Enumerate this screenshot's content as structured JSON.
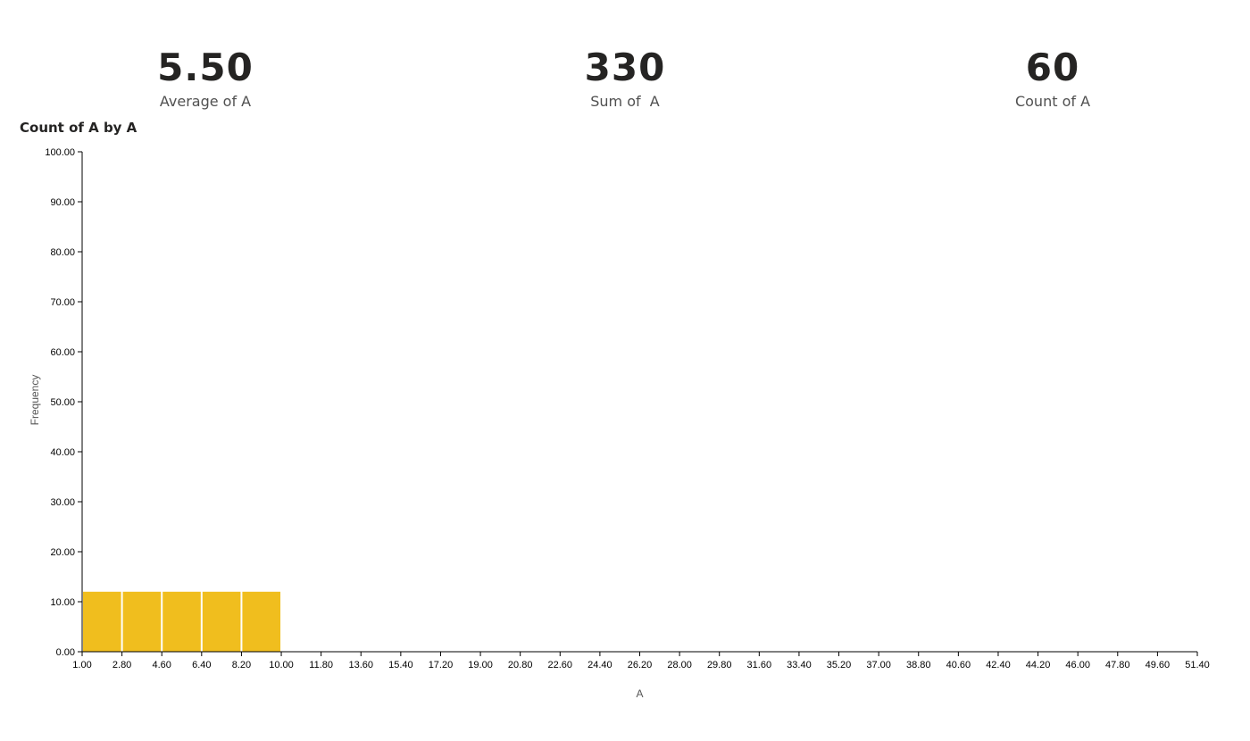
{
  "cards": [
    {
      "value": "5.50",
      "label": "Average of A"
    },
    {
      "value": "330",
      "label": "Sum of  A"
    },
    {
      "value": "60",
      "label": "Count of A"
    }
  ],
  "chart_data": {
    "type": "bar",
    "title": "Count of A by A",
    "xlabel": "A",
    "ylabel": "Frequency",
    "ylim": [
      0,
      100
    ],
    "yticks": [
      "0.00",
      "10.00",
      "20.00",
      "30.00",
      "40.00",
      "50.00",
      "60.00",
      "70.00",
      "80.00",
      "90.00",
      "100.00"
    ],
    "xticks": [
      "1.00",
      "2.80",
      "4.60",
      "6.40",
      "8.20",
      "10.00",
      "11.80",
      "13.60",
      "15.40",
      "17.20",
      "19.00",
      "20.80",
      "22.60",
      "24.40",
      "26.20",
      "28.00",
      "29.80",
      "31.60",
      "33.40",
      "35.20",
      "37.00",
      "38.80",
      "40.60",
      "42.40",
      "44.20",
      "46.00",
      "47.80",
      "49.60",
      "51.40"
    ],
    "xlim": [
      1.0,
      51.4
    ],
    "bins": [
      {
        "start": 1.0,
        "end": 2.8,
        "value": 12
      },
      {
        "start": 2.8,
        "end": 4.6,
        "value": 12
      },
      {
        "start": 4.6,
        "end": 6.4,
        "value": 12
      },
      {
        "start": 6.4,
        "end": 8.2,
        "value": 12
      },
      {
        "start": 8.2,
        "end": 10.0,
        "value": 12
      }
    ],
    "bar_color": "#F0BE1E",
    "grid": false
  }
}
